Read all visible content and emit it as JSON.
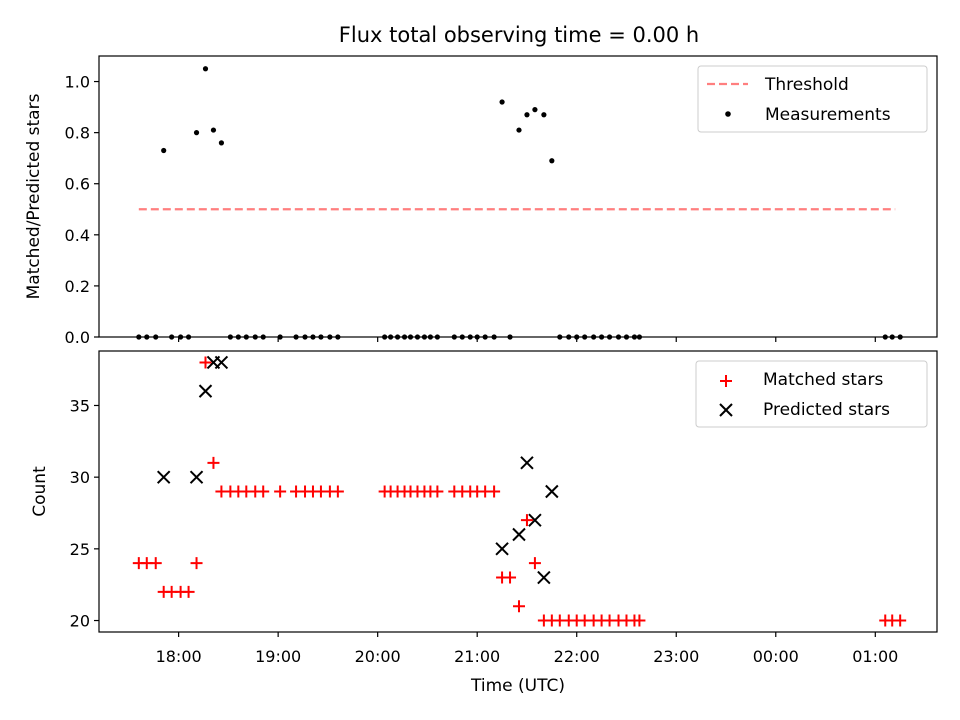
{
  "chart_data": [
    {
      "type": "scatter",
      "title": "Flux total observing time = 0.00 h",
      "xlabel": "",
      "ylabel": "Matched/Predicted stars",
      "xlim": [
        17.2,
        25.62
      ],
      "ylim": [
        0.0,
        1.1
      ],
      "yticks": [
        0.0,
        0.2,
        0.4,
        0.6,
        0.8,
        1.0
      ],
      "ytick_labels": [
        "0.0",
        "0.2",
        "0.4",
        "0.6",
        "0.8",
        "1.0"
      ],
      "threshold": {
        "name": "Threshold",
        "value": 0.5,
        "x_start": 17.6,
        "x_end": 25.2,
        "color": "#ff7f7f"
      },
      "series": [
        {
          "name": "Measurements",
          "color": "#000000",
          "x": [
            17.6,
            17.68,
            17.77,
            17.85,
            17.93,
            18.02,
            18.1,
            18.18,
            18.27,
            18.35,
            18.43,
            18.52,
            18.6,
            18.68,
            18.77,
            18.85,
            19.02,
            19.18,
            19.27,
            19.35,
            19.43,
            19.52,
            19.6,
            20.07,
            20.13,
            20.2,
            20.27,
            20.33,
            20.4,
            20.47,
            20.53,
            20.6,
            20.77,
            20.85,
            20.93,
            21.0,
            21.08,
            21.17,
            21.25,
            21.33,
            21.42,
            21.5,
            21.58,
            21.67,
            21.75,
            21.83,
            21.92,
            22.0,
            22.08,
            22.17,
            22.25,
            22.33,
            22.42,
            22.5,
            22.58,
            22.63,
            25.1,
            25.17,
            25.25
          ],
          "y": [
            0.0,
            0.0,
            0.0,
            0.73,
            0.0,
            0.0,
            0.0,
            0.8,
            1.05,
            0.81,
            0.76,
            0.0,
            0.0,
            0.0,
            0.0,
            0.0,
            0.0,
            0.0,
            0.0,
            0.0,
            0.0,
            0.0,
            0.0,
            0.0,
            0.0,
            0.0,
            0.0,
            0.0,
            0.0,
            0.0,
            0.0,
            0.0,
            0.0,
            0.0,
            0.0,
            0.0,
            0.0,
            0.0,
            0.92,
            0.0,
            0.81,
            0.87,
            0.89,
            0.87,
            0.69,
            0.0,
            0.0,
            0.0,
            0.0,
            0.0,
            0.0,
            0.0,
            0.0,
            0.0,
            0.0,
            0.0,
            0.0,
            0.0,
            0.0
          ]
        }
      ],
      "legend": {
        "position": "upper right",
        "entries": [
          "Threshold",
          "Measurements"
        ]
      }
    },
    {
      "type": "scatter",
      "title": "",
      "xlabel": "Time (UTC)",
      "ylabel": "Count",
      "xlim": [
        17.2,
        25.62
      ],
      "ylim": [
        19.2,
        38.8
      ],
      "yticks": [
        20,
        25,
        30,
        35
      ],
      "ytick_labels": [
        "20",
        "25",
        "30",
        "35"
      ],
      "xticks": [
        18,
        19,
        20,
        21,
        22,
        23,
        24,
        25
      ],
      "xtick_labels": [
        "18:00",
        "19:00",
        "20:00",
        "21:00",
        "22:00",
        "23:00",
        "00:00",
        "01:00"
      ],
      "series": [
        {
          "name": "Matched stars",
          "marker": "+",
          "color": "#ff0000",
          "x": [
            17.6,
            17.68,
            17.77,
            17.85,
            17.93,
            18.02,
            18.1,
            18.18,
            18.27,
            18.35,
            18.43,
            18.52,
            18.6,
            18.68,
            18.77,
            18.85,
            19.02,
            19.18,
            19.27,
            19.35,
            19.43,
            19.52,
            19.6,
            20.07,
            20.13,
            20.2,
            20.27,
            20.33,
            20.4,
            20.47,
            20.53,
            20.6,
            20.77,
            20.85,
            20.93,
            21.0,
            21.08,
            21.17,
            21.25,
            21.33,
            21.42,
            21.5,
            21.58,
            21.67,
            21.75,
            21.83,
            21.92,
            22.0,
            22.08,
            22.17,
            22.25,
            22.33,
            22.42,
            22.5,
            22.58,
            22.63,
            25.1,
            25.17,
            25.25
          ],
          "y": [
            24,
            24,
            24,
            22,
            22,
            22,
            22,
            24,
            38,
            31,
            29,
            29,
            29,
            29,
            29,
            29,
            29,
            29,
            29,
            29,
            29,
            29,
            29,
            29,
            29,
            29,
            29,
            29,
            29,
            29,
            29,
            29,
            29,
            29,
            29,
            29,
            29,
            29,
            23,
            23,
            21,
            27,
            24,
            20,
            20,
            20,
            20,
            20,
            20,
            20,
            20,
            20,
            20,
            20,
            20,
            20,
            20,
            20,
            20
          ]
        },
        {
          "name": "Predicted stars",
          "marker": "x",
          "color": "#000000",
          "x": [
            17.85,
            18.18,
            18.27,
            18.35,
            18.43,
            21.25,
            21.42,
            21.5,
            21.58,
            21.67,
            21.75
          ],
          "y": [
            30,
            30,
            36,
            38,
            38,
            25,
            26,
            31,
            27,
            23,
            29
          ]
        }
      ],
      "legend": {
        "position": "upper right",
        "entries": [
          "Matched stars",
          "Predicted stars"
        ]
      }
    }
  ]
}
